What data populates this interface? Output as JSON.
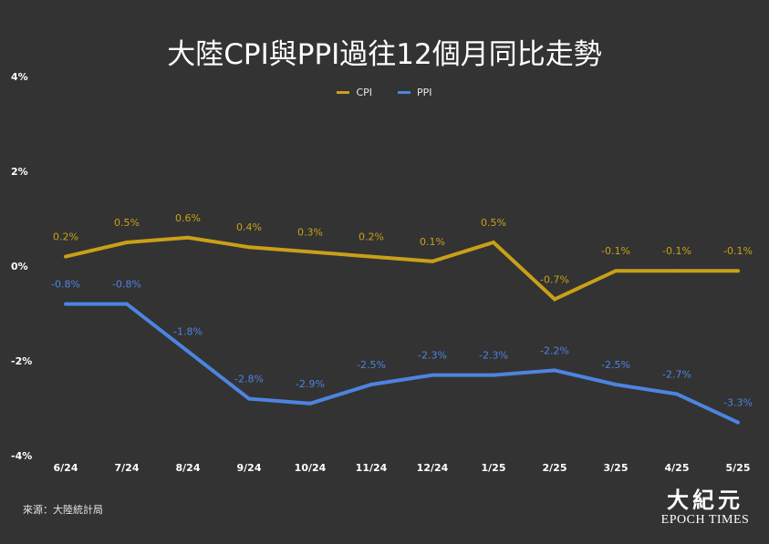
{
  "chart_data": {
    "type": "line",
    "title": "大陸CPI與PPI過往12個月同比走勢",
    "categories": [
      "6/24",
      "7/24",
      "8/24",
      "9/24",
      "10/24",
      "11/24",
      "12/24",
      "1/25",
      "2/25",
      "3/25",
      "4/25",
      "5/25"
    ],
    "series": [
      {
        "name": "CPI",
        "color": "#c9a018",
        "values": [
          0.2,
          0.5,
          0.6,
          0.4,
          0.3,
          0.2,
          0.1,
          0.5,
          -0.7,
          -0.1,
          -0.1,
          -0.1
        ],
        "labels": [
          "0.2%",
          "0.5%",
          "0.6%",
          "0.4%",
          "0.3%",
          "0.2%",
          "0.1%",
          "0.5%",
          "-0.7%",
          "-0.1%",
          "-0.1%",
          "-0.1%"
        ]
      },
      {
        "name": "PPI",
        "color": "#4d84e0",
        "values": [
          -0.8,
          -0.8,
          -1.8,
          -2.8,
          -2.9,
          -2.5,
          -2.3,
          -2.3,
          -2.2,
          -2.5,
          -2.7,
          -3.3
        ],
        "labels": [
          "-0.8%",
          "-0.8%",
          "-1.8%",
          "-2.8%",
          "-2.9%",
          "-2.5%",
          "-2.3%",
          "-2.3%",
          "-2.2%",
          "-2.5%",
          "-2.7%",
          "-3.3%"
        ]
      }
    ],
    "ylim": [
      -4,
      4
    ],
    "yticks": [
      4,
      2,
      0,
      -2,
      -4
    ],
    "ytick_labels": [
      "4%",
      "2%",
      "0%",
      "-2%",
      "-4%"
    ],
    "xlabel": "",
    "ylabel": "",
    "grid": false,
    "legend_position": "top-center"
  },
  "source": "來源：大陸統計局",
  "logo": {
    "cn": "大紀元",
    "en": "EPOCH TIMES"
  },
  "colors": {
    "background": "#333333",
    "text": "#ffffff"
  }
}
